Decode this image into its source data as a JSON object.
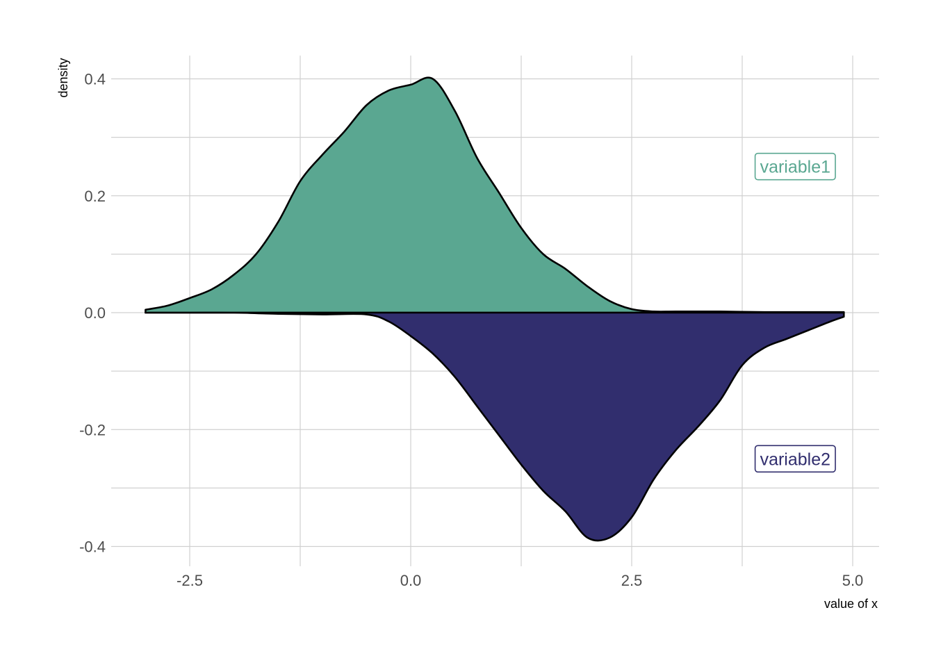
{
  "chart_data": {
    "type": "area",
    "xlabel": "value of x",
    "ylabel": "density",
    "xlim": [
      -3.1,
      5.3
    ],
    "ylim": [
      -0.43,
      0.44
    ],
    "grid": true,
    "x_ticks": [
      -2.5,
      0.0,
      2.5,
      5.0
    ],
    "x_tick_labels": [
      "-2.5",
      "0.0",
      "2.5",
      "5.0"
    ],
    "y_ticks": [
      -0.4,
      -0.2,
      0.0,
      0.2,
      0.4
    ],
    "y_tick_labels": [
      "-0.4",
      "-0.2",
      "0.0",
      "0.2",
      "0.4"
    ],
    "series": [
      {
        "name": "variable1",
        "color": "#5aa791",
        "direction": "up",
        "x": [
          -3.0,
          -2.75,
          -2.5,
          -2.25,
          -2.0,
          -1.75,
          -1.5,
          -1.25,
          -1.0,
          -0.75,
          -0.5,
          -0.25,
          0.0,
          0.25,
          0.5,
          0.75,
          1.0,
          1.25,
          1.5,
          1.75,
          2.0,
          2.25,
          2.5,
          2.75,
          3.0,
          3.5,
          4.0,
          4.5,
          4.9
        ],
        "y": [
          0.005,
          0.012,
          0.025,
          0.04,
          0.065,
          0.1,
          0.155,
          0.225,
          0.27,
          0.31,
          0.355,
          0.38,
          0.39,
          0.4,
          0.345,
          0.265,
          0.205,
          0.145,
          0.1,
          0.075,
          0.045,
          0.02,
          0.006,
          0.002,
          0.002,
          0.002,
          0.001,
          0.001,
          0.001
        ]
      },
      {
        "name": "variable2",
        "color": "#312e6e",
        "direction": "down",
        "x": [
          -3.0,
          -2.5,
          -2.0,
          -1.5,
          -1.0,
          -0.5,
          -0.25,
          0.0,
          0.25,
          0.5,
          0.75,
          1.0,
          1.25,
          1.5,
          1.75,
          2.0,
          2.25,
          2.5,
          2.75,
          3.0,
          3.25,
          3.5,
          3.75,
          4.0,
          4.25,
          4.5,
          4.75,
          4.9
        ],
        "y": [
          0.0,
          0.0,
          0.0,
          0.002,
          0.003,
          0.003,
          0.015,
          0.04,
          0.07,
          0.11,
          0.16,
          0.21,
          0.26,
          0.305,
          0.34,
          0.385,
          0.385,
          0.35,
          0.285,
          0.235,
          0.195,
          0.15,
          0.09,
          0.06,
          0.045,
          0.03,
          0.015,
          0.007
        ]
      }
    ],
    "annotations": [
      {
        "text": "variable1",
        "x": 4.35,
        "y": 0.25,
        "color": "#5aa791"
      },
      {
        "text": "variable2",
        "x": 4.35,
        "y": -0.25,
        "color": "#312e6e"
      }
    ]
  }
}
